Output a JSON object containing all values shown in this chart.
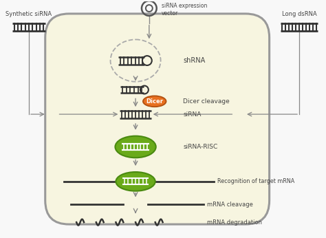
{
  "bg_color": "#f8f8f8",
  "cell_fill": "#f7f5e0",
  "cell_border": "#999999",
  "title_text": "siRNA expression\nvector",
  "label_shrna": "shRNA",
  "label_dicer_cleavage": "Dicer cleavage",
  "label_sirna": "siRNA",
  "label_risc": "siRNA-RISC",
  "label_recognition": "Recognition of target mRNA",
  "label_mrna_cleavage": "mRNA cleavage",
  "label_mrna_degradation": "mRNA degradation",
  "label_synthetic": "Synthetic siRNA",
  "label_longds": "Long dsRNA",
  "dicer_color": "#e87020",
  "risc_color": "#6aaa1a",
  "green_dark": "#4a8a10",
  "arrow_color": "#888888",
  "text_color": "#444444",
  "dna_color": "#333333"
}
